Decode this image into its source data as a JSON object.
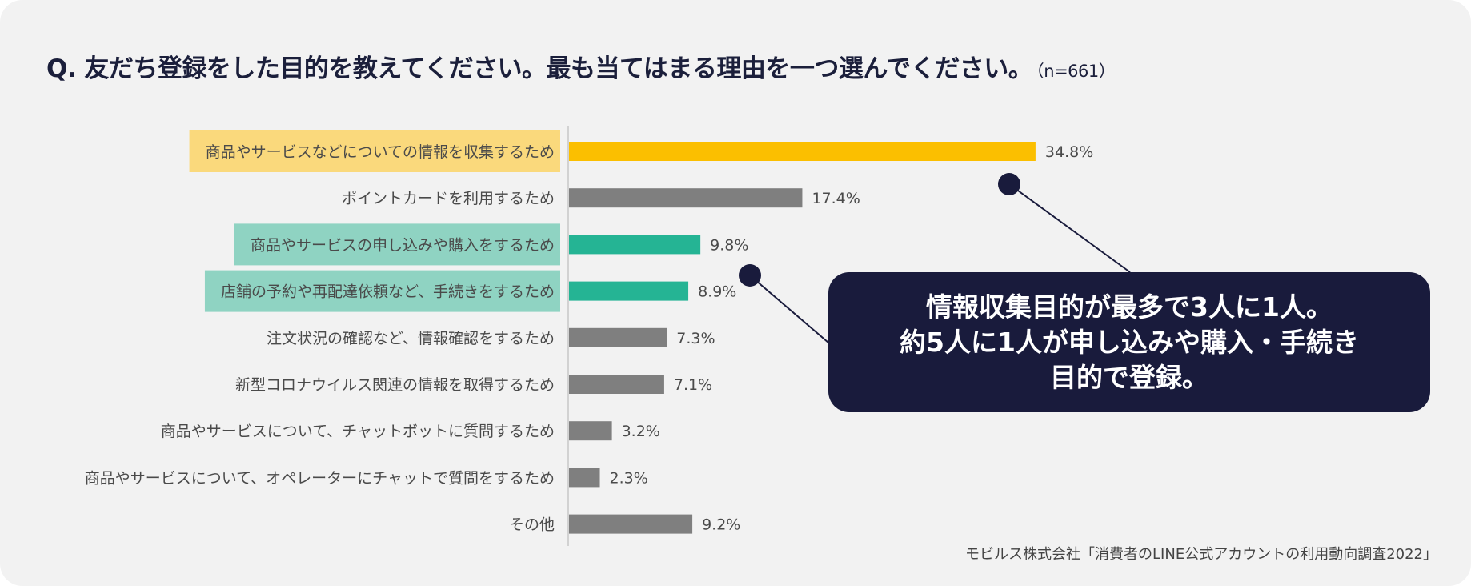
{
  "title": {
    "question": "Q. 友だち登録をした目的を教えてください。最も当てはまる理由を一つ選んでください。",
    "sample": "（n=661）"
  },
  "chart_data": {
    "type": "bar",
    "orientation": "horizontal",
    "title": "Q. 友だち登録をした目的を教えてください。最も当てはまる理由を一つ選んでください。（n=661）",
    "unit": "%",
    "xlim": [
      0,
      40
    ],
    "categories": [
      "商品やサービスなどについての情報を収集するため",
      "ポイントカードを利用するため",
      "商品やサービスの申し込みや購入をするため",
      "店舗の予約や再配達依頼など、手続きをするため",
      "注文状況の確認など、情報確認をするため",
      "新型コロナウイルス関連の情報を取得するため",
      "商品やサービスについて、チャットボットに質問するため",
      "商品やサービスについて、オペレーターにチャットで質問をするため",
      "その他"
    ],
    "values": [
      34.8,
      17.4,
      9.8,
      8.9,
      7.3,
      7.1,
      3.2,
      2.3,
      9.2
    ],
    "value_labels": [
      "34.8%",
      "17.4%",
      "9.8%",
      "8.9%",
      "7.3%",
      "7.1%",
      "3.2%",
      "2.3%",
      "9.2%"
    ],
    "highlight": [
      "yellow",
      "none",
      "teal",
      "teal",
      "none",
      "none",
      "none",
      "none",
      "none"
    ]
  },
  "colors": {
    "yellow_bar": "#fbbf00",
    "yellow_label_bg": "#fad97c",
    "teal_bar": "#25b494",
    "teal_label_bg": "#8fd3c2",
    "gray_bar": "#7f7f7f",
    "navy": "#191b3c"
  },
  "callout": {
    "line1": "情報収集目的が最多で3人に1人。",
    "line2": "約5人に1人が申し込みや購入・手続き",
    "line3": "目的で登録。"
  },
  "source": "モビルス株式会社「消費者のLINE公式アカウントの利用動向調査2022」"
}
